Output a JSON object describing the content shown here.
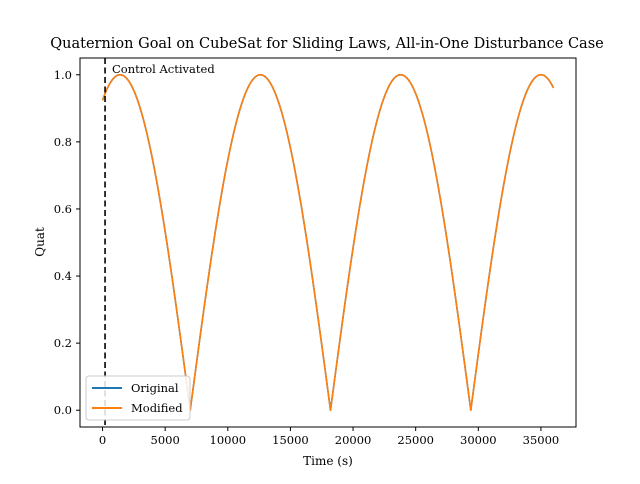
{
  "colors": {
    "original": "#1f77b4",
    "modified": "#ff7f0e",
    "activation_line": "#000000",
    "background": "#ffffff"
  },
  "chart_data": {
    "type": "line",
    "title": "Quaternion Goal on CubeSat for Sliding Laws, All-in-One Disturbance Case",
    "xlabel": "Time (s)",
    "ylabel": "Quat",
    "xlim": [
      -1800,
      37800
    ],
    "ylim": [
      -0.05,
      1.05
    ],
    "x_ticks": [
      0,
      5000,
      10000,
      15000,
      20000,
      25000,
      30000,
      35000
    ],
    "x_tick_labels": [
      "0",
      "5000",
      "10000",
      "15000",
      "20000",
      "25000",
      "30000",
      "35000"
    ],
    "y_ticks": [
      0.0,
      0.2,
      0.4,
      0.6,
      0.8,
      1.0
    ],
    "y_tick_labels": [
      "0.0",
      "0.2",
      "0.4",
      "0.6",
      "0.8",
      "1.0"
    ],
    "grid": false,
    "legend_location": "lower-left",
    "annotation": {
      "text": "Control Activated",
      "x": 200
    },
    "series": [
      {
        "name": "Original",
        "function": "abs_cos",
        "period": 11200,
        "peak_time": 1400,
        "x_start": 0,
        "x_end": 36000
      },
      {
        "name": "Modified",
        "function": "abs_cos",
        "period": 11200,
        "peak_time": 1400,
        "x_start": 0,
        "x_end": 36000
      }
    ]
  }
}
